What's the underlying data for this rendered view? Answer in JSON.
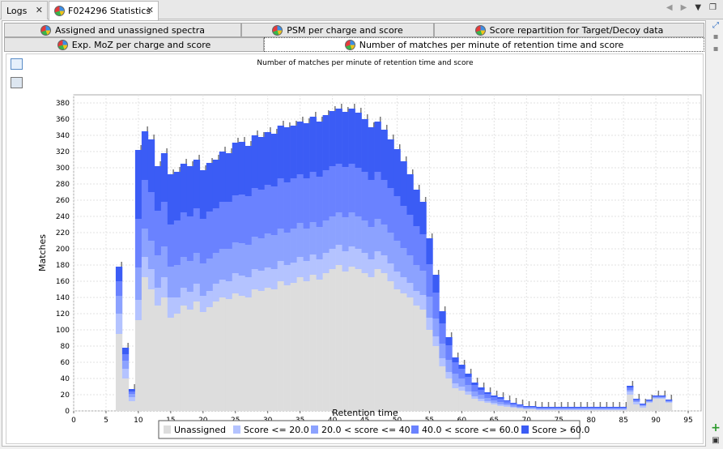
{
  "editor_tabs": [
    {
      "label": "Logs",
      "active": false
    },
    {
      "label": "F024296 Statistics",
      "active": true
    }
  ],
  "sub_tabs_row1": [
    {
      "label": "Assigned and unassigned spectra"
    },
    {
      "label": "PSM per charge and score"
    },
    {
      "label": "Score repartition for Target/Decoy data"
    }
  ],
  "sub_tabs_row2": [
    {
      "label": "Exp. MoZ per charge and score"
    },
    {
      "label": "Number of matches per minute of retention time and score"
    }
  ],
  "colors": {
    "unassigned": "#dddddd",
    "s1": "#b4c3ff",
    "s2": "#8ca2ff",
    "s3": "#6a82ff",
    "s4": "#3b5cf5",
    "decoy": "#777777"
  },
  "chart_data": {
    "type": "bar",
    "title": "Number of matches per minute of retention time and score",
    "xlabel": "Retention time",
    "ylabel": "Matches",
    "xlim": [
      0,
      97
    ],
    "ylim": [
      0,
      390
    ],
    "xticks": [
      0,
      5,
      10,
      15,
      20,
      25,
      30,
      35,
      40,
      45,
      50,
      55,
      60,
      65,
      70,
      75,
      80,
      85,
      90,
      95
    ],
    "yticks": [
      0,
      20,
      40,
      60,
      80,
      100,
      120,
      140,
      160,
      180,
      200,
      220,
      240,
      260,
      280,
      300,
      320,
      340,
      360,
      380
    ],
    "grid": true,
    "legend_position": "bottom",
    "legend": [
      "Unassigned",
      "Score <= 20.0",
      "20.0 < score <= 40.0",
      "40.0 < score <= 60.0",
      "Score > 60.0"
    ],
    "x": [
      7,
      8,
      9,
      10,
      11,
      12,
      13,
      14,
      15,
      16,
      17,
      18,
      19,
      20,
      21,
      22,
      23,
      24,
      25,
      26,
      27,
      28,
      29,
      30,
      31,
      32,
      33,
      34,
      35,
      36,
      37,
      38,
      39,
      40,
      41,
      42,
      43,
      44,
      45,
      46,
      47,
      48,
      49,
      50,
      51,
      52,
      53,
      54,
      55,
      56,
      57,
      58,
      59,
      60,
      61,
      62,
      63,
      64,
      65,
      66,
      67,
      68,
      69,
      70,
      71,
      72,
      73,
      74,
      75,
      76,
      77,
      78,
      79,
      80,
      81,
      82,
      83,
      84,
      85,
      86,
      87,
      88,
      89,
      90,
      91,
      92
    ],
    "series": [
      {
        "name": "Unassigned",
        "values": [
          95,
          40,
          12,
          112,
          165,
          150,
          130,
          140,
          115,
          120,
          130,
          125,
          135,
          122,
          128,
          135,
          140,
          138,
          145,
          142,
          140,
          150,
          148,
          152,
          150,
          160,
          155,
          158,
          165,
          160,
          168,
          162,
          170,
          175,
          180,
          172,
          178,
          175,
          170,
          165,
          175,
          170,
          160,
          150,
          145,
          140,
          130,
          125,
          100,
          80,
          55,
          40,
          28,
          25,
          20,
          15,
          12,
          10,
          8,
          6,
          5,
          4,
          3,
          2,
          2,
          1,
          1,
          1,
          1,
          1,
          1,
          1,
          1,
          1,
          1,
          1,
          1,
          1,
          1,
          20,
          8,
          4,
          10,
          15,
          15,
          10
        ]
      },
      {
        "name": "Score <= 20.0",
        "values": [
          25,
          12,
          5,
          25,
          25,
          25,
          22,
          25,
          25,
          20,
          22,
          22,
          22,
          20,
          20,
          22,
          22,
          22,
          25,
          25,
          25,
          25,
          25,
          25,
          25,
          25,
          25,
          25,
          25,
          25,
          25,
          25,
          25,
          25,
          25,
          25,
          25,
          25,
          25,
          22,
          22,
          22,
          22,
          22,
          20,
          18,
          18,
          18,
          15,
          12,
          10,
          8,
          6,
          5,
          4,
          3,
          3,
          2,
          2,
          2,
          2,
          1,
          1,
          1,
          1,
          1,
          1,
          1,
          1,
          1,
          1,
          1,
          1,
          1,
          1,
          1,
          1,
          1,
          1,
          4,
          3,
          2,
          1,
          1,
          1,
          1
        ]
      },
      {
        "name": "20.0 < score <= 40.0",
        "values": [
          22,
          10,
          4,
          40,
          35,
          35,
          40,
          38,
          38,
          40,
          38,
          38,
          38,
          40,
          40,
          38,
          38,
          40,
          38,
          40,
          40,
          40,
          40,
          42,
          42,
          40,
          40,
          42,
          42,
          40,
          40,
          40,
          40,
          40,
          40,
          42,
          42,
          40,
          40,
          40,
          40,
          38,
          38,
          38,
          36,
          34,
          32,
          30,
          26,
          22,
          18,
          15,
          12,
          10,
          8,
          6,
          5,
          4,
          3,
          3,
          2,
          2,
          1,
          1,
          1,
          1,
          1,
          1,
          1,
          1,
          1,
          1,
          1,
          1,
          1,
          1,
          1,
          1,
          1,
          2,
          1,
          1,
          1,
          1,
          1,
          1
        ]
      },
      {
        "name": "40.0 < score <= 60.0",
        "values": [
          18,
          8,
          3,
          60,
          60,
          60,
          55,
          55,
          52,
          55,
          55,
          55,
          55,
          55,
          58,
          55,
          58,
          58,
          58,
          60,
          60,
          60,
          60,
          60,
          60,
          62,
          62,
          62,
          60,
          62,
          62,
          62,
          62,
          62,
          60,
          62,
          60,
          60,
          60,
          58,
          58,
          55,
          55,
          55,
          52,
          50,
          48,
          45,
          40,
          32,
          25,
          18,
          14,
          12,
          10,
          8,
          6,
          5,
          4,
          4,
          3,
          2,
          2,
          1,
          1,
          1,
          1,
          1,
          1,
          1,
          1,
          1,
          1,
          1,
          1,
          1,
          1,
          1,
          1,
          3,
          2,
          1,
          1,
          1,
          1,
          1
        ]
      },
      {
        "name": "Score > 60.0",
        "values": [
          18,
          8,
          3,
          85,
          60,
          65,
          55,
          60,
          62,
          60,
          60,
          62,
          60,
          60,
          60,
          60,
          62,
          60,
          65,
          65,
          62,
          65,
          65,
          65,
          65,
          65,
          68,
          65,
          65,
          68,
          68,
          68,
          68,
          68,
          68,
          68,
          68,
          68,
          65,
          65,
          62,
          62,
          60,
          58,
          55,
          50,
          45,
          40,
          32,
          22,
          15,
          10,
          6,
          5,
          4,
          3,
          3,
          2,
          2,
          2,
          1,
          1,
          1,
          1,
          1,
          1,
          1,
          1,
          1,
          1,
          1,
          1,
          1,
          1,
          1,
          1,
          1,
          1,
          1,
          2,
          1,
          1,
          1,
          1,
          1,
          1
        ]
      }
    ]
  }
}
